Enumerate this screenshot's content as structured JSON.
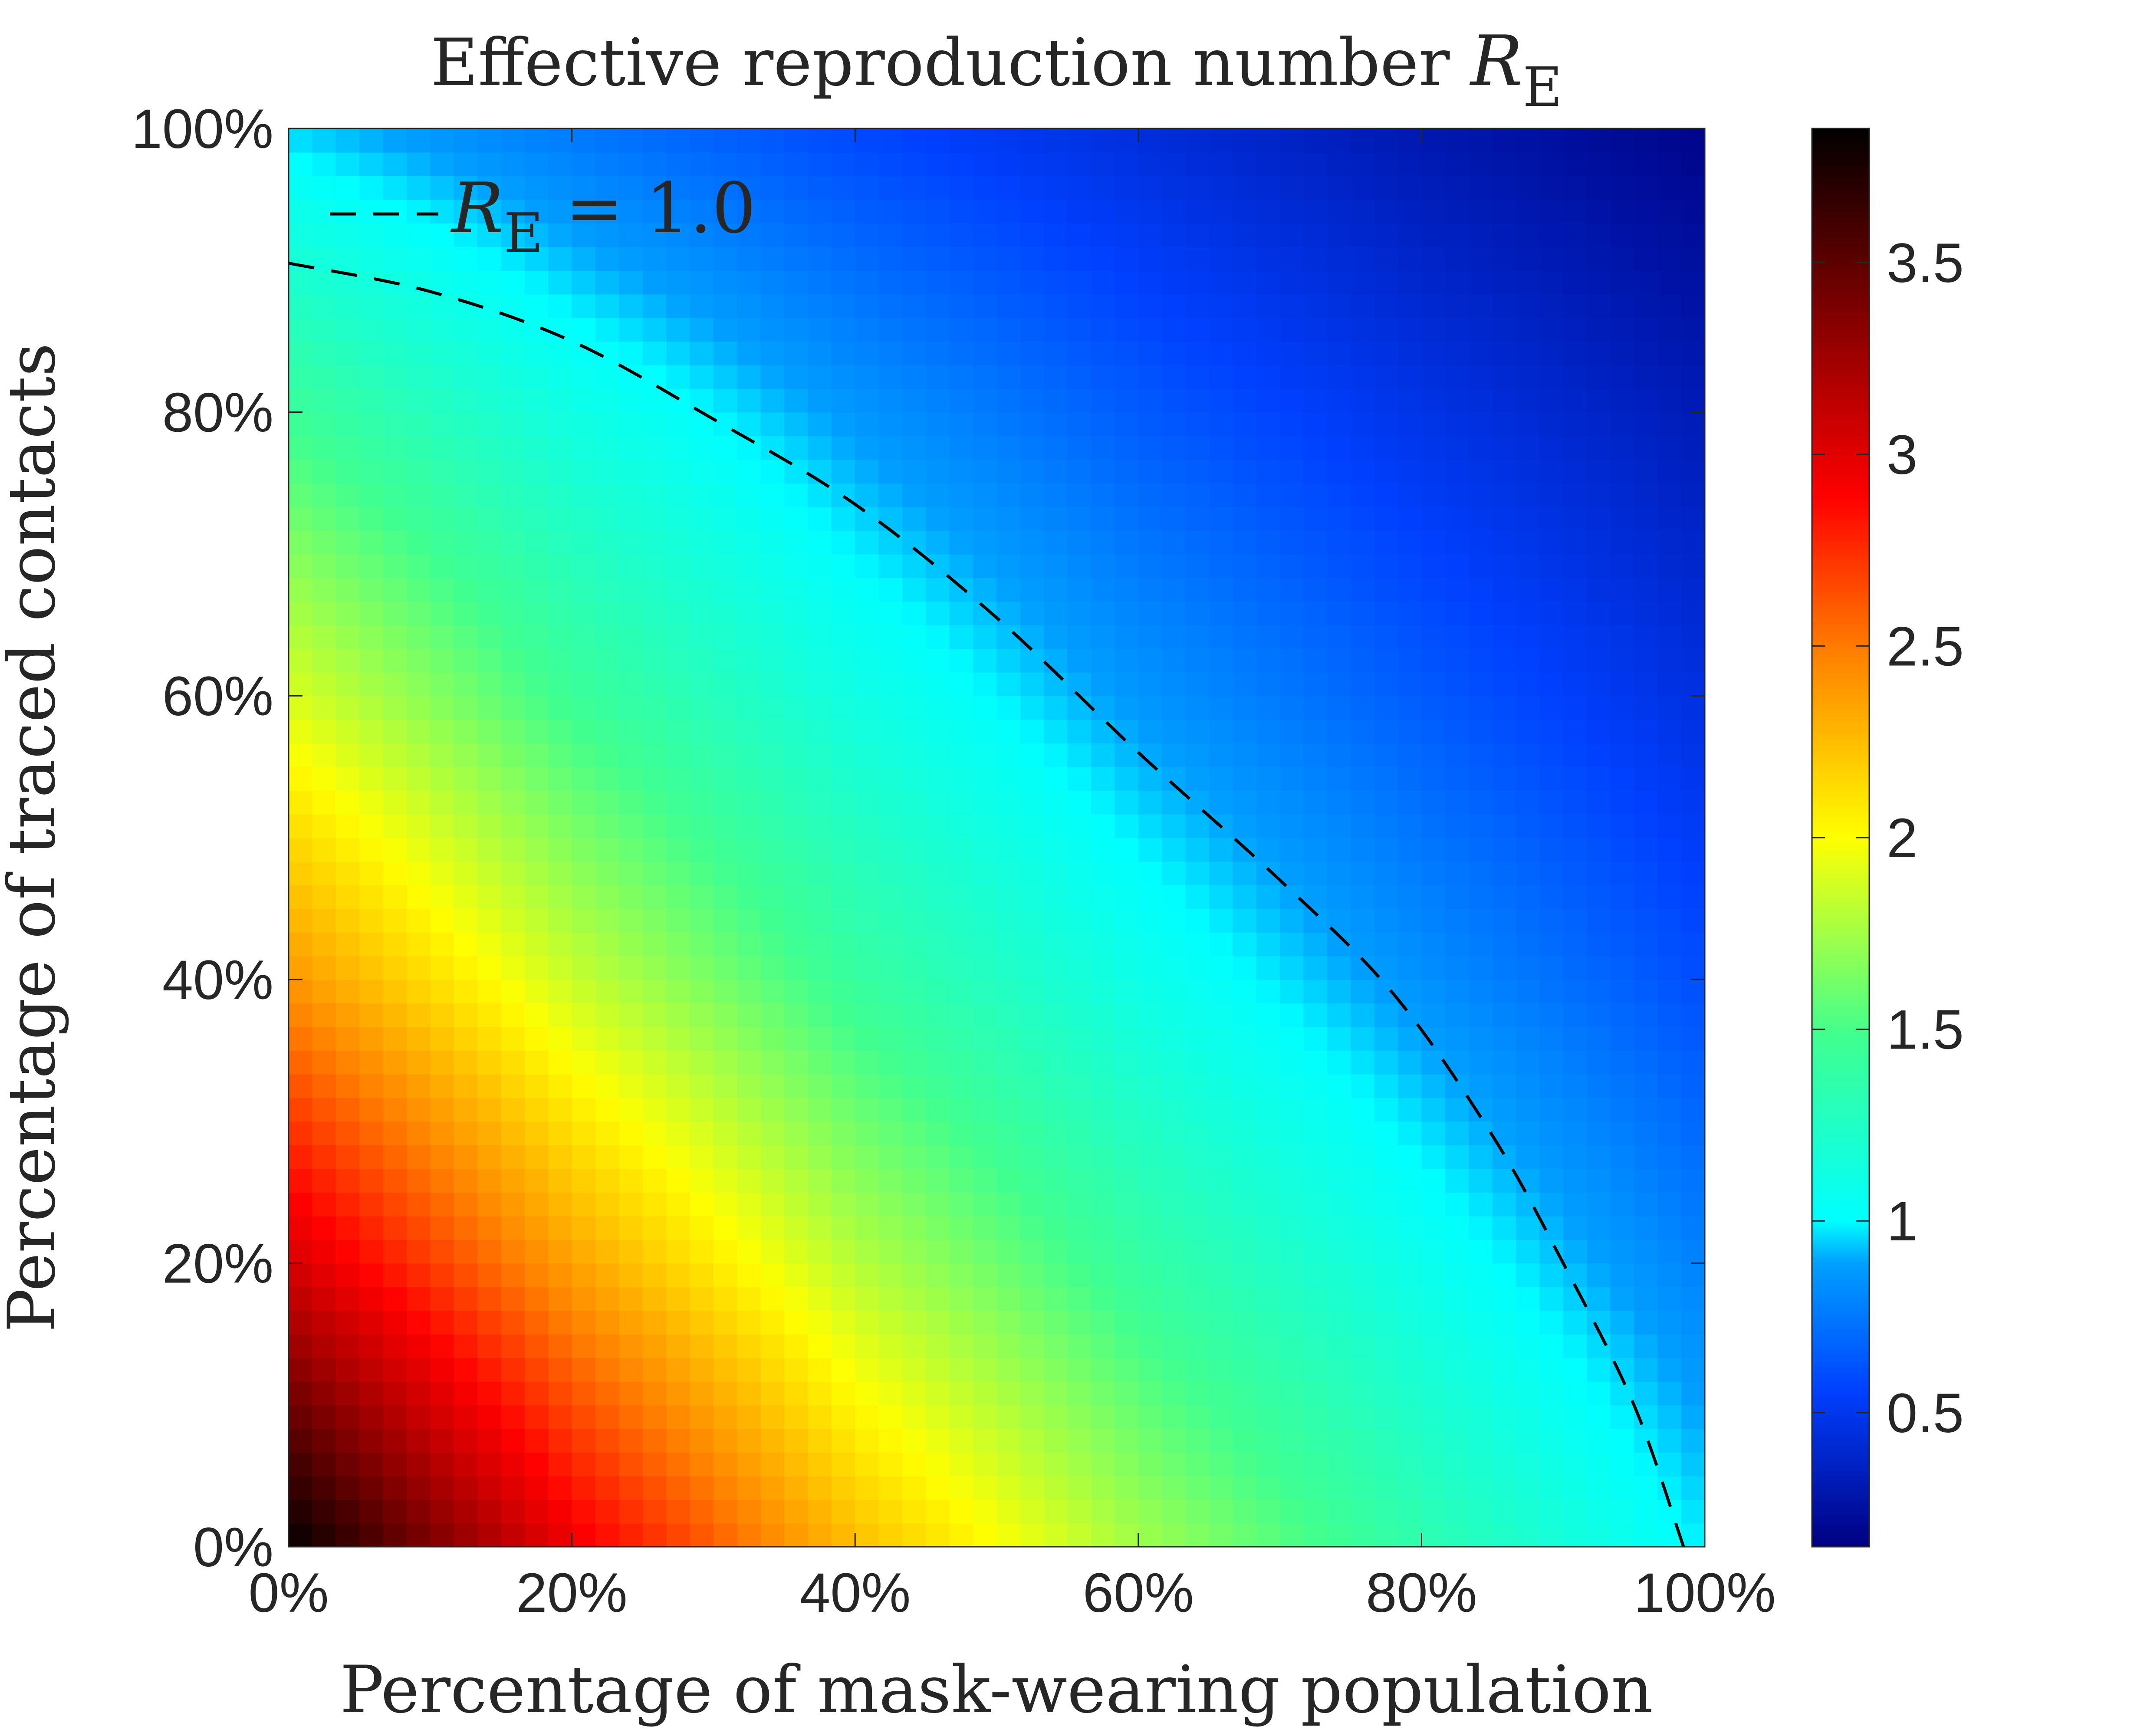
{
  "chart_data": {
    "type": "heatmap",
    "title": {
      "text": "Effective reproduction number ",
      "symbol": "R",
      "subscript": "E"
    },
    "xlabel": "Percentage of mask-wearing population",
    "ylabel": "Percentage of traced contacts",
    "xlim": [
      0,
      100
    ],
    "ylim": [
      0,
      100
    ],
    "x_ticks": [
      {
        "value": 0,
        "label": "0%"
      },
      {
        "value": 20,
        "label": "20%"
      },
      {
        "value": 40,
        "label": "40%"
      },
      {
        "value": 60,
        "label": "60%"
      },
      {
        "value": 80,
        "label": "80%"
      },
      {
        "value": 100,
        "label": "100%"
      }
    ],
    "y_ticks": [
      {
        "value": 0,
        "label": "0%"
      },
      {
        "value": 20,
        "label": "20%"
      },
      {
        "value": 40,
        "label": "40%"
      },
      {
        "value": 60,
        "label": "60%"
      },
      {
        "value": 80,
        "label": "80%"
      },
      {
        "value": 100,
        "label": "100%"
      }
    ],
    "colorbar": {
      "colormap": "jet",
      "clim": [
        0.15,
        3.85
      ],
      "ticks": [
        {
          "value": 0.5,
          "label": "0.5"
        },
        {
          "value": 1,
          "label": "1"
        },
        {
          "value": 1.5,
          "label": "1.5"
        },
        {
          "value": 2,
          "label": "2"
        },
        {
          "value": 2.5,
          "label": "2.5"
        },
        {
          "value": 3,
          "label": "3"
        },
        {
          "value": 3.5,
          "label": "3.5"
        }
      ],
      "colors": [
        "#000080",
        "#0000ff",
        "#00ffff",
        "#ffff00",
        "#ff0000",
        "#800000",
        "#000000"
      ]
    },
    "samples": {
      "description_of_axes": "values[i][j]: i = traced contacts (%) row, j = mask-wearing (%) column",
      "mask_pct": [
        0,
        20,
        40,
        60,
        80,
        100
      ],
      "traced_pct": [
        0,
        20,
        40,
        60,
        80,
        100
      ],
      "values": [
        [
          3.85,
          2.95,
          2.25,
          1.75,
          1.35,
          0.98
        ],
        [
          3.05,
          2.35,
          1.8,
          1.4,
          1.08,
          0.78
        ],
        [
          2.4,
          1.85,
          1.42,
          1.1,
          0.84,
          0.6
        ],
        [
          1.9,
          1.45,
          1.12,
          0.86,
          0.65,
          0.45
        ],
        [
          1.45,
          1.12,
          0.86,
          0.65,
          0.48,
          0.32
        ],
        [
          0.95,
          0.75,
          0.58,
          0.44,
          0.3,
          0.18
        ]
      ]
    },
    "contour": {
      "level": 1.0,
      "style": "dashed",
      "color": "#000000",
      "legend": {
        "symbol": "R",
        "subscript": "E",
        "text": " = 1.0"
      },
      "legend_placement": "top-left",
      "points": [
        {
          "x": 0,
          "y": 90.5
        },
        {
          "x": 10,
          "y": 88.5
        },
        {
          "x": 20,
          "y": 85
        },
        {
          "x": 30,
          "y": 79.5
        },
        {
          "x": 40,
          "y": 73.5
        },
        {
          "x": 50,
          "y": 65.5
        },
        {
          "x": 60,
          "y": 56
        },
        {
          "x": 70,
          "y": 47
        },
        {
          "x": 78,
          "y": 39
        },
        {
          "x": 85,
          "y": 29
        },
        {
          "x": 90,
          "y": 20
        },
        {
          "x": 95,
          "y": 10
        },
        {
          "x": 98.5,
          "y": 0
        }
      ]
    },
    "grid": false
  }
}
